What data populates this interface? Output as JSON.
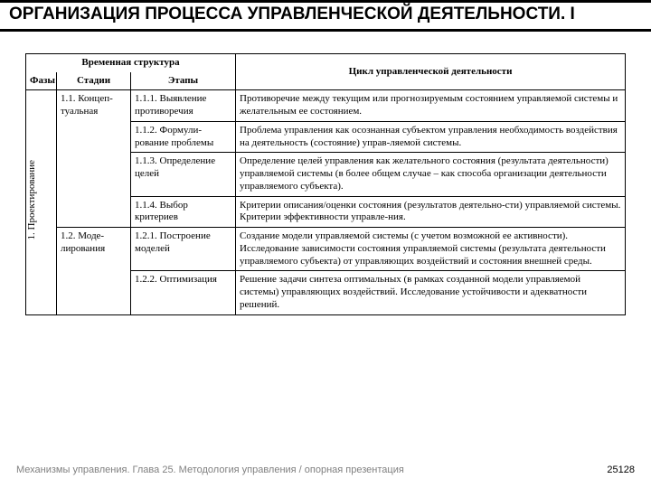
{
  "title": "ОРГАНИЗАЦИЯ ПРОЦЕССА УПРАВЛЕНЧЕСКОЙ ДЕЯТЕЛЬНОСТИ. I",
  "headers": {
    "group": "Временная структура",
    "phase": "Фазы",
    "stage": "Стадии",
    "step": "Этапы",
    "cycle": "Цикл управленческой деятельности"
  },
  "phase": "1. Проектирование",
  "stages": {
    "s11": "1.1. Концеп-туальная",
    "s12": "1.2. Моде-лирования"
  },
  "steps": {
    "e111": "1.1.1. Выявление противоречия",
    "e112": "1.1.2. Формули-рование проблемы",
    "e113": "1.1.3. Определение целей",
    "e114": "1.1.4. Выбор критериев",
    "e121": "1.2.1. Построение моделей",
    "e122": "1.2.2. Оптимизация"
  },
  "cycle": {
    "c111": "Противоречие между текущим или прогнозируемым состоянием управляемой системы и желательным ее состоянием.",
    "c112": "Проблема управления как осознанная субъектом управления необходимость воздействия на деятельность (состояние) управ-ляемой системы.",
    "c113": "Определение целей управления как желательного состояния (результата деятельности) управляемой системы (в более общем случае – как способа организации деятельности управляемого субъекта).",
    "c114": "Критерии описания/оценки состояния (результатов деятельно-сти) управляемой системы. Критерии эффективности управле-ния.",
    "c121": "Создание модели управляемой системы (с учетом возможной ее активности). Исследование зависимости состояния управляемой системы (результата деятельности управляемого субъекта) от управляющих воздействий и состояния внешней среды.",
    "c122": "Решение задачи синтеза оптимальных (в рамках созданной модели управляемой системы) управляющих воздействий. Исследование устойчивости и адекватности решений."
  },
  "footer": {
    "left": "Механизмы управления. Глава 25. Методология управления / опорная презентация",
    "page": "25128"
  },
  "colors": {
    "text": "#000000",
    "footer_gray": "#808080",
    "rule": "#000000",
    "bg": "#ffffff"
  }
}
